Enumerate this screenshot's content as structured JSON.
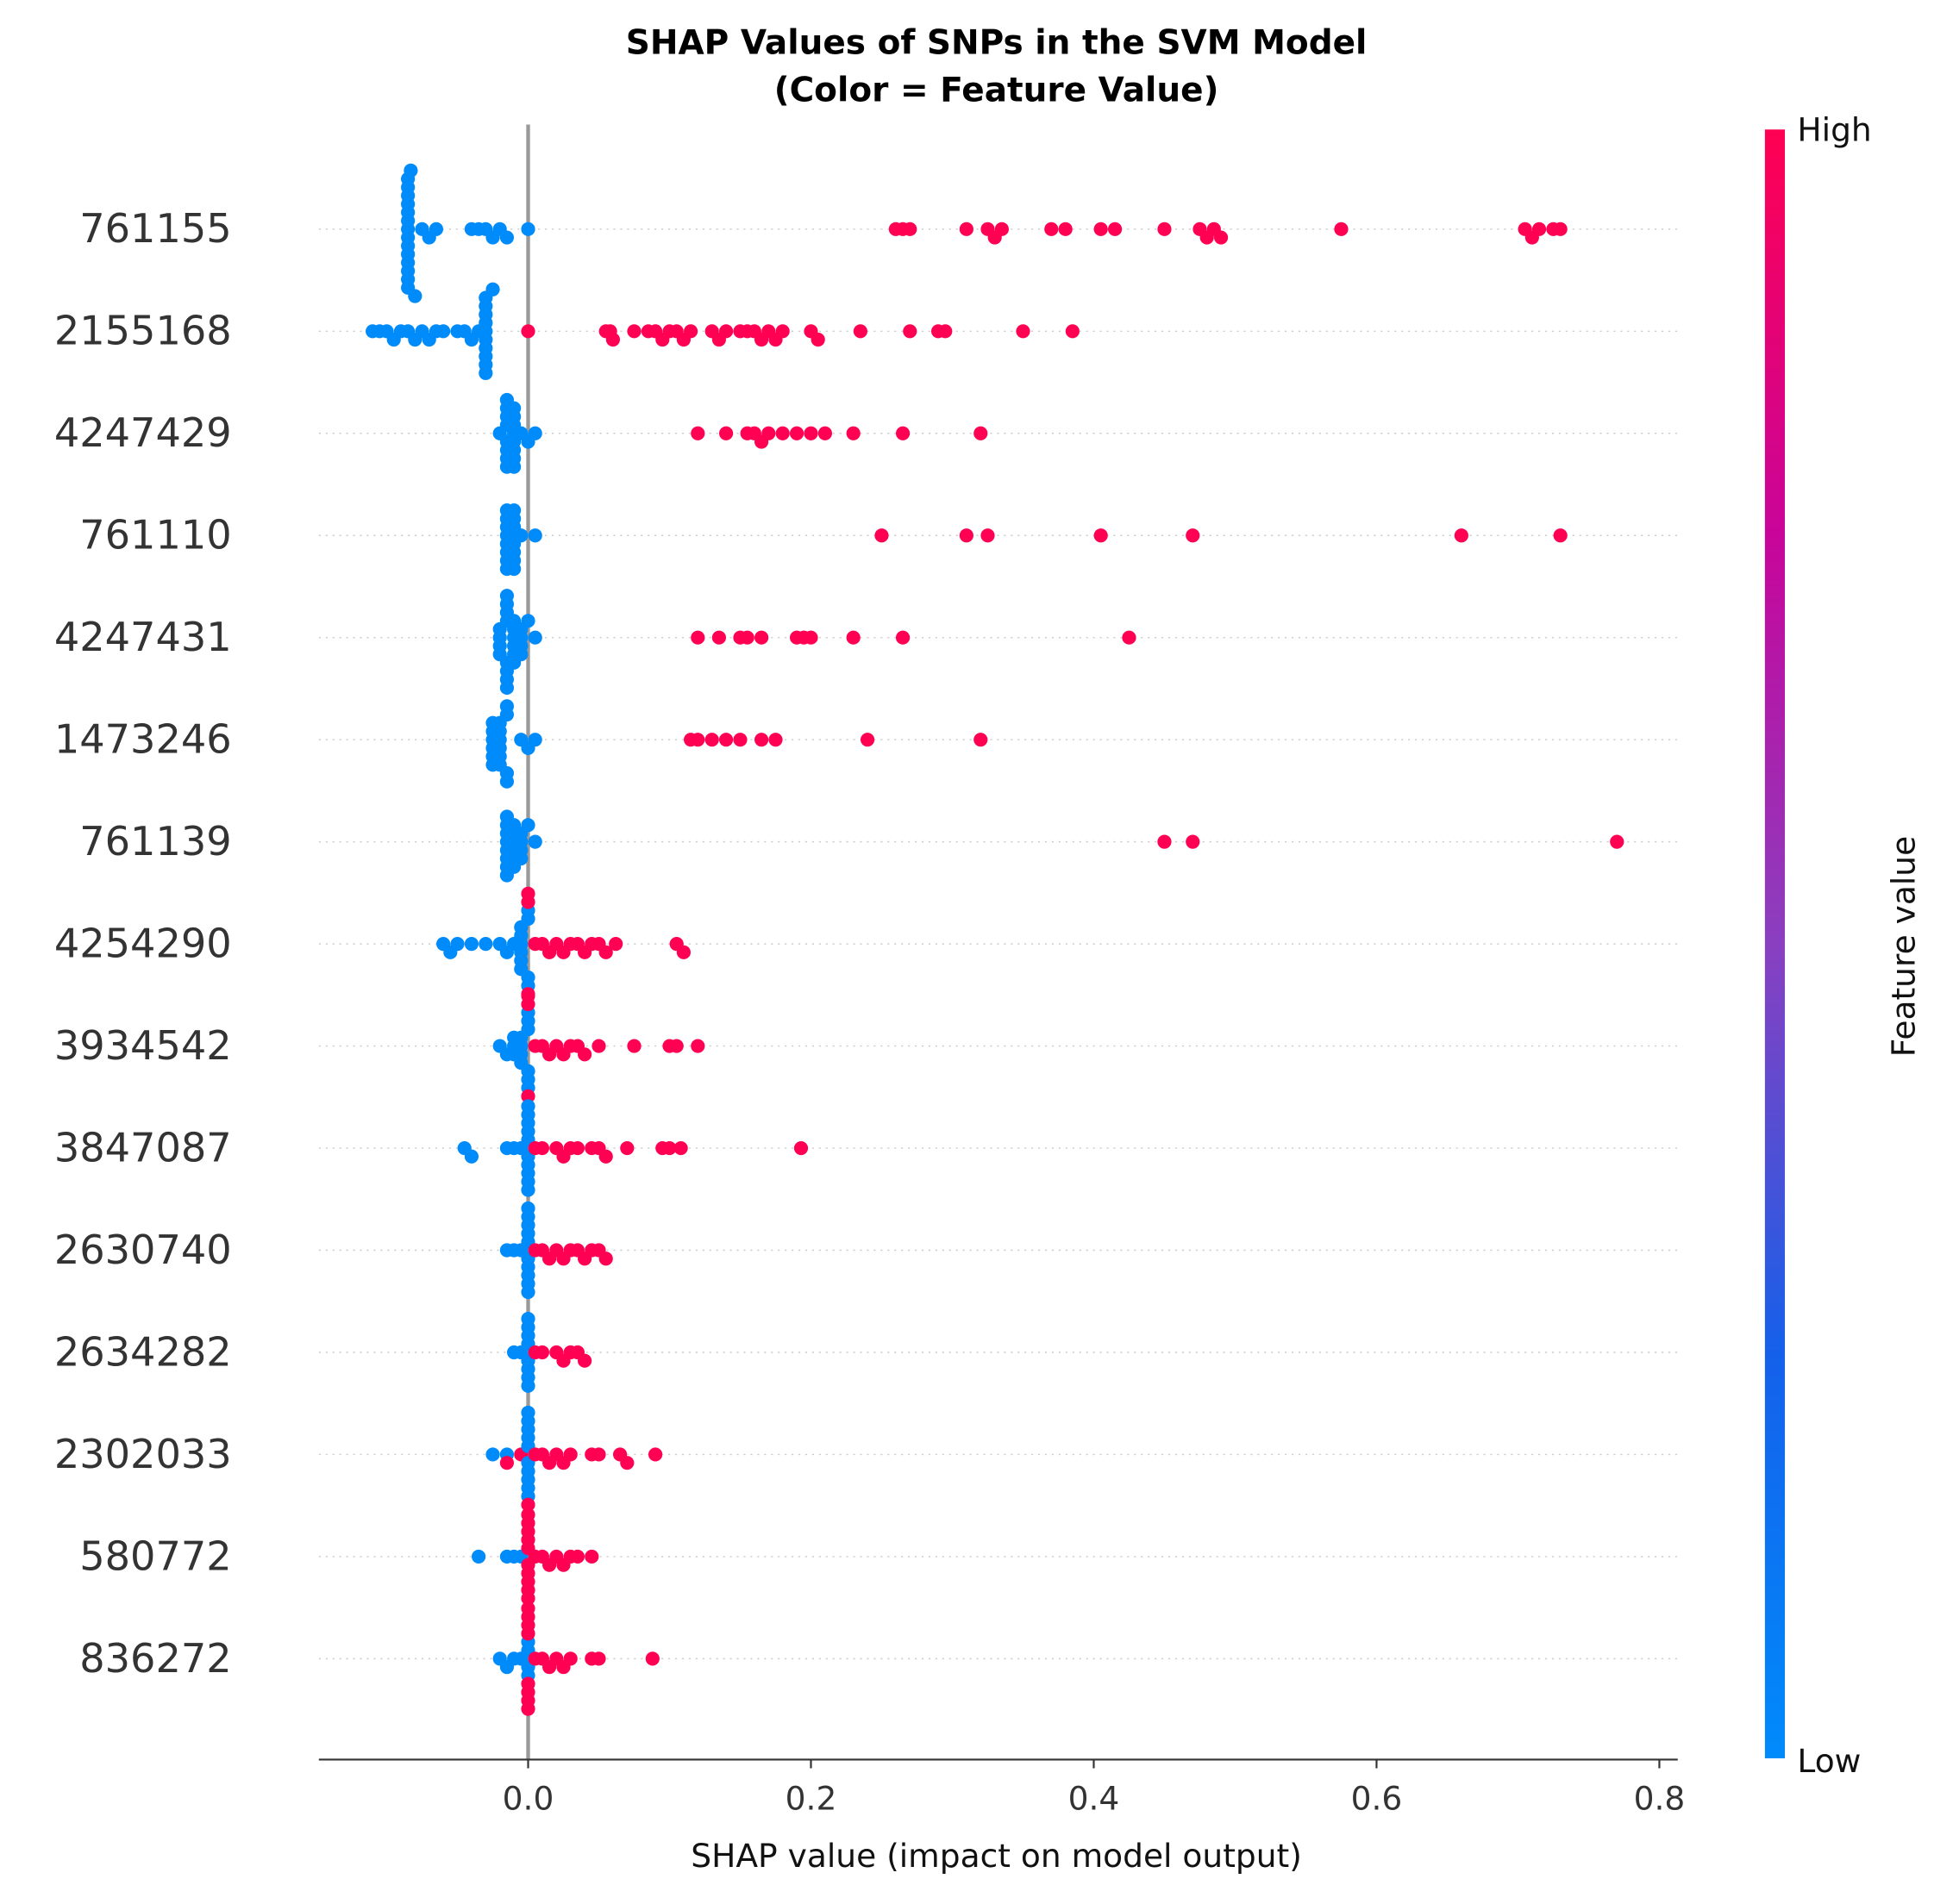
{
  "chart_data": {
    "type": "beeswarm",
    "title": "SHAP Values of SNPs in the SVM Model",
    "subtitle": "(Color = Feature Value)",
    "xlabel": "SHAP value (impact on model output)",
    "xlim": [
      -0.148,
      0.813
    ],
    "xticks": [
      {
        "value": 0,
        "label": "0.0"
      },
      {
        "value": 0.2,
        "label": "0.2"
      },
      {
        "value": 0.4,
        "label": "0.4"
      },
      {
        "value": 0.6,
        "label": "0.6"
      },
      {
        "value": 0.8,
        "label": "0.8"
      }
    ],
    "colorbar": {
      "label": "Feature value",
      "high_label": "High",
      "low_label": "Low",
      "colors": [
        "#008bfb",
        "#1560ea",
        "#8a3fc0",
        "#c8059a",
        "#ff0052"
      ]
    },
    "series": [
      {
        "name": "761155",
        "values": [
          -0.085,
          -0.085,
          -0.085,
          -0.085,
          -0.085,
          -0.085,
          -0.085,
          -0.085,
          -0.085,
          -0.085,
          -0.085,
          -0.085,
          -0.085,
          -0.085,
          -0.083,
          -0.08,
          -0.075,
          -0.07,
          -0.065,
          -0.04,
          -0.035,
          -0.03,
          -0.025,
          -0.02,
          -0.015,
          0.0,
          0.26,
          0.265,
          0.27,
          0.31,
          0.325,
          0.33,
          0.335,
          0.37,
          0.38,
          0.405,
          0.415,
          0.45,
          0.475,
          0.48,
          0.485,
          0.49,
          0.575,
          0.705,
          0.71,
          0.715,
          0.725,
          0.73
        ],
        "feature_values": [
          0,
          0,
          0,
          0,
          0,
          0,
          0,
          0,
          0,
          0,
          0,
          0,
          0,
          0,
          0,
          0,
          0,
          0,
          0,
          0,
          0,
          0,
          0,
          0,
          0,
          0,
          1,
          1,
          1,
          1,
          1,
          1,
          1,
          1,
          1,
          1,
          1,
          1,
          1,
          1,
          1,
          1,
          1,
          1,
          1,
          1,
          1,
          1
        ]
      },
      {
        "name": "2155168",
        "values": [
          -0.11,
          -0.105,
          -0.1,
          -0.095,
          -0.09,
          -0.085,
          -0.08,
          -0.075,
          -0.07,
          -0.065,
          -0.06,
          -0.05,
          -0.045,
          -0.04,
          -0.035,
          -0.03,
          -0.03,
          -0.03,
          -0.03,
          -0.03,
          -0.03,
          -0.03,
          -0.03,
          -0.03,
          -0.03,
          -0.025,
          0.0,
          0.055,
          0.058,
          0.06,
          0.075,
          0.085,
          0.09,
          0.095,
          0.1,
          0.105,
          0.11,
          0.115,
          0.13,
          0.135,
          0.14,
          0.15,
          0.155,
          0.16,
          0.165,
          0.17,
          0.175,
          0.18,
          0.2,
          0.205,
          0.235,
          0.27,
          0.29,
          0.295,
          0.35,
          0.385
        ],
        "feature_values": [
          0,
          0,
          0,
          0,
          0,
          0,
          0,
          0,
          0,
          0,
          0,
          0,
          0,
          0,
          0,
          0,
          0,
          0,
          0,
          0,
          0,
          0,
          0,
          0,
          0,
          0,
          1,
          1,
          1,
          1,
          1,
          1,
          1,
          1,
          1,
          1,
          1,
          1,
          1,
          1,
          1,
          1,
          1,
          1,
          1,
          1,
          1,
          1,
          1,
          1,
          1,
          1,
          1,
          1,
          1,
          1
        ]
      },
      {
        "name": "4247429",
        "values": [
          -0.02,
          -0.015,
          -0.015,
          -0.015,
          -0.015,
          -0.015,
          -0.015,
          -0.015,
          -0.015,
          -0.01,
          -0.01,
          -0.01,
          -0.01,
          -0.01,
          -0.01,
          -0.01,
          -0.01,
          -0.005,
          0.0,
          0.005,
          0.12,
          0.14,
          0.155,
          0.16,
          0.165,
          0.17,
          0.18,
          0.19,
          0.2,
          0.21,
          0.23,
          0.265,
          0.32
        ],
        "feature_values": [
          0,
          0,
          0,
          0,
          0,
          0,
          0,
          0,
          0,
          0,
          0,
          0,
          0,
          0,
          0,
          0,
          0,
          0,
          0,
          0,
          1,
          1,
          1,
          1,
          1,
          1,
          1,
          1,
          1,
          1,
          1,
          1,
          1
        ]
      },
      {
        "name": "761110",
        "values": [
          -0.015,
          -0.015,
          -0.015,
          -0.015,
          -0.015,
          -0.015,
          -0.015,
          -0.015,
          -0.01,
          -0.01,
          -0.01,
          -0.01,
          -0.01,
          -0.01,
          -0.01,
          -0.01,
          -0.005,
          0.005,
          0.25,
          0.31,
          0.325,
          0.405,
          0.47,
          0.66,
          0.73
        ],
        "feature_values": [
          0,
          0,
          0,
          0,
          0,
          0,
          0,
          0,
          0,
          0,
          0,
          0,
          0,
          0,
          0,
          0,
          0,
          0,
          1,
          1,
          1,
          1,
          1,
          1,
          1
        ]
      },
      {
        "name": "4247431",
        "values": [
          -0.02,
          -0.02,
          -0.02,
          -0.02,
          -0.015,
          -0.015,
          -0.015,
          -0.015,
          -0.015,
          -0.015,
          -0.015,
          -0.015,
          -0.01,
          -0.01,
          -0.01,
          -0.01,
          -0.01,
          -0.01,
          -0.005,
          -0.005,
          -0.005,
          -0.005,
          0.0,
          0.005,
          0.12,
          0.135,
          0.15,
          0.155,
          0.165,
          0.19,
          0.195,
          0.2,
          0.23,
          0.265,
          0.425
        ],
        "feature_values": [
          0,
          0,
          0,
          0,
          0,
          0,
          0,
          0,
          0,
          0,
          0,
          0,
          0,
          0,
          0,
          0,
          0,
          0,
          0,
          0,
          0,
          0,
          0,
          0,
          1,
          1,
          1,
          1,
          1,
          1,
          1,
          1,
          1,
          1,
          1
        ]
      },
      {
        "name": "1473246",
        "values": [
          -0.025,
          -0.025,
          -0.025,
          -0.025,
          -0.025,
          -0.025,
          -0.02,
          -0.02,
          -0.02,
          -0.02,
          -0.02,
          -0.02,
          -0.015,
          -0.015,
          -0.015,
          -0.015,
          -0.005,
          0.0,
          0.005,
          0.115,
          0.12,
          0.13,
          0.14,
          0.15,
          0.165,
          0.175,
          0.24,
          0.32
        ],
        "feature_values": [
          0,
          0,
          0,
          0,
          0,
          0,
          0,
          0,
          0,
          0,
          0,
          0,
          0,
          0,
          0,
          0,
          0,
          0,
          0,
          1,
          1,
          1,
          1,
          1,
          1,
          1,
          1,
          1
        ]
      },
      {
        "name": "761139",
        "values": [
          -0.015,
          -0.015,
          -0.015,
          -0.015,
          -0.015,
          -0.015,
          -0.015,
          -0.015,
          -0.01,
          -0.01,
          -0.01,
          -0.01,
          -0.01,
          -0.01,
          -0.005,
          -0.005,
          -0.005,
          -0.005,
          0.0,
          0.005,
          0.45,
          0.47,
          0.77
        ],
        "feature_values": [
          0,
          0,
          0,
          0,
          0,
          0,
          0,
          0,
          0,
          0,
          0,
          0,
          0,
          0,
          0,
          0,
          0,
          0,
          0,
          0,
          1,
          1,
          1
        ]
      },
      {
        "name": "4254290",
        "values": [
          -0.06,
          -0.055,
          -0.05,
          -0.04,
          -0.03,
          -0.02,
          -0.015,
          -0.01,
          -0.005,
          -0.005,
          -0.005,
          -0.005,
          -0.005,
          -0.005,
          0.0,
          0.0,
          0.0,
          0.0,
          0.0,
          0.0,
          0.0,
          0.005,
          0.01,
          0.015,
          0.02,
          0.025,
          0.03,
          0.035,
          0.04,
          0.045,
          0.05,
          0.055,
          0.062,
          0.105,
          0.11
        ],
        "feature_values": [
          0,
          0,
          0,
          0,
          0,
          0,
          0,
          0,
          0,
          0,
          0,
          0,
          0,
          0,
          0,
          0,
          0,
          0,
          1,
          1,
          1,
          1,
          1,
          1,
          1,
          1,
          1,
          1,
          1,
          1,
          1,
          1,
          1,
          1,
          1
        ]
      },
      {
        "name": "3934542",
        "values": [
          -0.02,
          -0.015,
          -0.01,
          -0.01,
          -0.01,
          -0.005,
          -0.005,
          -0.005,
          -0.005,
          0.0,
          0.0,
          0.0,
          0.0,
          0.0,
          0.0,
          0.0,
          0.0,
          0.0,
          0.005,
          0.01,
          0.015,
          0.02,
          0.025,
          0.03,
          0.035,
          0.04,
          0.05,
          0.075,
          0.1,
          0.105,
          0.12
        ],
        "feature_values": [
          0,
          0,
          0,
          0,
          0,
          0,
          0,
          0,
          0,
          0,
          0,
          0,
          0,
          0,
          0,
          1,
          1,
          1,
          1,
          1,
          1,
          1,
          1,
          1,
          1,
          1,
          1,
          1,
          1,
          1,
          1
        ]
      },
      {
        "name": "3847087",
        "values": [
          -0.045,
          -0.04,
          -0.015,
          -0.01,
          -0.005,
          0.0,
          0.0,
          0.0,
          0.0,
          0.0,
          0.0,
          0.0,
          0.0,
          0.0,
          0.0,
          0.005,
          0.01,
          0.02,
          0.025,
          0.03,
          0.035,
          0.045,
          0.05,
          0.055,
          0.07,
          0.095,
          0.1,
          0.108,
          0.193
        ],
        "feature_values": [
          0,
          0,
          0,
          0,
          0,
          0,
          0,
          0,
          0,
          0,
          0,
          0,
          0,
          0,
          0,
          1,
          1,
          1,
          1,
          1,
          1,
          1,
          1,
          1,
          1,
          1,
          1,
          1,
          1
        ]
      },
      {
        "name": "2630740",
        "values": [
          -0.015,
          -0.01,
          -0.005,
          0.0,
          0.0,
          0.0,
          0.0,
          0.0,
          0.0,
          0.0,
          0.0,
          0.0,
          0.0,
          0.005,
          0.01,
          0.015,
          0.02,
          0.025,
          0.03,
          0.035,
          0.04,
          0.045,
          0.05,
          0.055
        ],
        "feature_values": [
          0,
          0,
          0,
          0,
          0,
          0,
          0,
          0,
          0,
          0,
          0,
          0,
          0,
          1,
          1,
          1,
          1,
          1,
          1,
          1,
          1,
          1,
          1,
          1
        ]
      },
      {
        "name": "2634282",
        "values": [
          -0.01,
          -0.005,
          0.0,
          0.0,
          0.0,
          0.0,
          0.0,
          0.0,
          0.0,
          0.0,
          0.005,
          0.01,
          0.02,
          0.025,
          0.03,
          0.035,
          0.04
        ],
        "feature_values": [
          0,
          0,
          0,
          0,
          0,
          0,
          0,
          0,
          0,
          0,
          1,
          1,
          1,
          1,
          1,
          1,
          1
        ]
      },
      {
        "name": "2302033",
        "values": [
          -0.025,
          -0.015,
          0.0,
          0.0,
          0.0,
          0.0,
          0.0,
          0.0,
          0.0,
          0.0,
          0.0,
          0.0,
          -0.015,
          -0.005,
          0.0,
          0.005,
          0.01,
          0.015,
          0.02,
          0.025,
          0.03,
          0.045,
          0.05,
          0.065,
          0.07,
          0.09
        ],
        "feature_values": [
          0,
          0,
          0,
          0,
          0,
          0,
          0,
          0,
          0,
          0,
          0,
          0,
          1,
          1,
          1,
          1,
          1,
          1,
          1,
          1,
          1,
          1,
          1,
          1,
          1,
          1
        ]
      },
      {
        "name": "580772",
        "values": [
          -0.035,
          -0.015,
          -0.01,
          -0.005,
          0.0,
          0.0,
          0.0,
          0.0,
          0.0,
          0.0,
          0.0,
          0.0,
          0.0,
          0.0,
          0.005,
          0.01,
          0.015,
          0.02,
          0.025,
          0.03,
          0.035,
          0.045
        ],
        "feature_values": [
          0,
          0,
          0,
          0,
          1,
          1,
          1,
          1,
          1,
          1,
          1,
          1,
          1,
          1,
          1,
          1,
          1,
          1,
          1,
          1,
          1,
          1
        ]
      },
      {
        "name": "836272",
        "values": [
          -0.02,
          -0.015,
          -0.01,
          -0.005,
          0.0,
          0.0,
          0.0,
          0.0,
          0.0,
          0.0,
          0.0,
          0.0,
          0.0,
          0.0,
          0.0,
          0.0,
          0.005,
          0.01,
          0.015,
          0.02,
          0.025,
          0.03,
          0.045,
          0.05,
          0.088
        ],
        "feature_values": [
          0,
          0,
          0,
          0,
          0,
          0,
          0,
          0,
          1,
          1,
          1,
          1,
          1,
          1,
          1,
          1,
          1,
          1,
          1,
          1,
          1,
          1,
          1,
          1,
          1
        ]
      }
    ]
  }
}
